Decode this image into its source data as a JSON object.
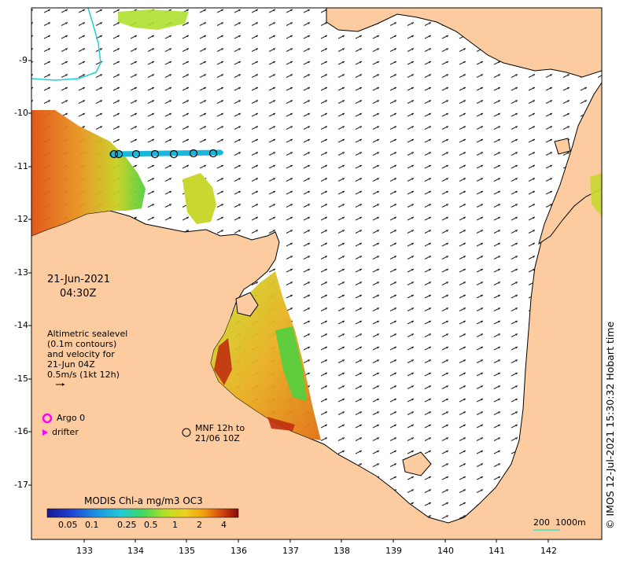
{
  "map": {
    "date": "21-Jun-2021",
    "time": "04:30Z",
    "legend_lines": [
      "Altimetric sealevel",
      "(0.1m contours)",
      "and velocity for",
      "21-Jun 04Z",
      "0.5m/s (1kt 12h)"
    ],
    "argo_label": "Argo 0",
    "drifter_label": "drifter",
    "mnf_lines": [
      "MNF 12h to",
      "21/06 10Z"
    ],
    "colorbar_title": "MODIS Chl-a mg/m3 OC3",
    "colorbar_ticks": [
      "0.05",
      "0.1",
      "0.25",
      "0.5",
      "1",
      "2",
      "4"
    ],
    "scale_label": "200  1000m",
    "copyright": "© IMOS 12-Jul-2021 15:30:32 Hobart time",
    "y_ticks": [
      "-9",
      "-10",
      "-11",
      "-12",
      "-13",
      "-14",
      "-15",
      "-16",
      "-17"
    ],
    "x_ticks": [
      "133",
      "134",
      "135",
      "136",
      "137",
      "138",
      "139",
      "140",
      "141",
      "142"
    ],
    "colors": {
      "land": "#fccca0",
      "coast": "#000000",
      "argo": "#ff00ff",
      "drifter": "#ff00ff",
      "track": "#19b7d9",
      "scale_line": "#40e0c0"
    }
  }
}
